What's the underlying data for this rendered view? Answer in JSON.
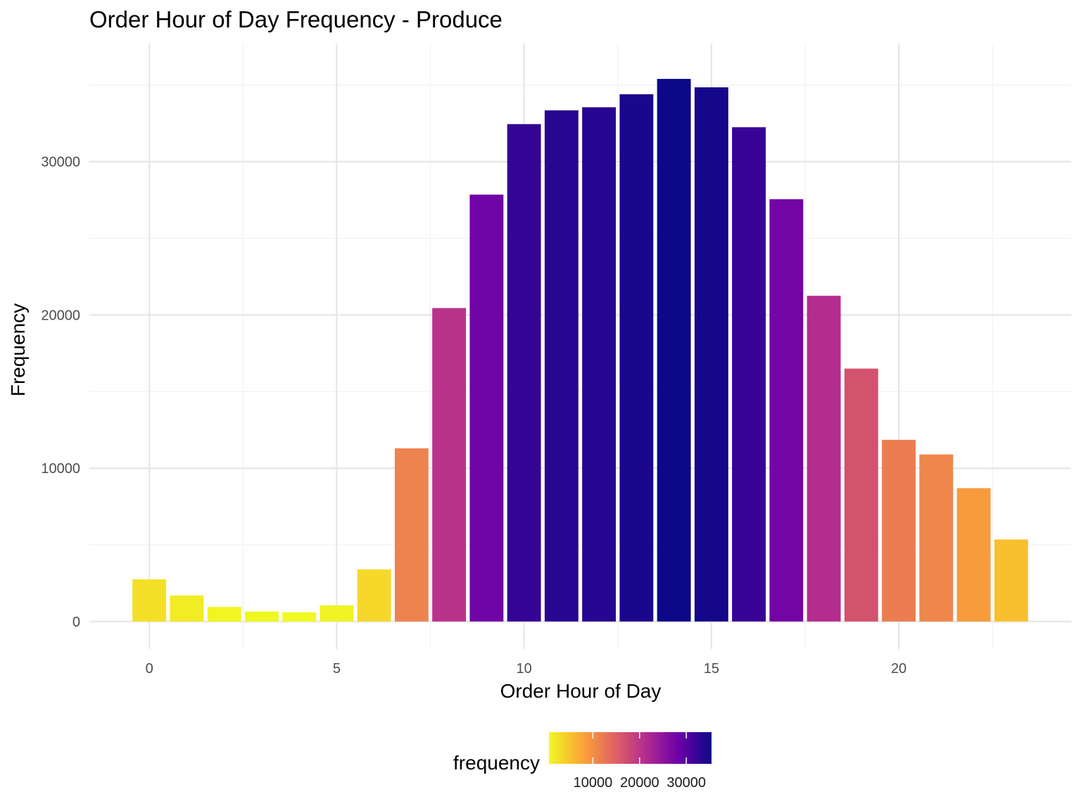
{
  "chart_data": {
    "type": "bar",
    "title": "Order Hour of Day Frequency - Produce",
    "xlabel": "Order Hour of Day",
    "ylabel": "Frequency",
    "x": [
      0,
      1,
      2,
      3,
      4,
      5,
      6,
      7,
      8,
      9,
      10,
      11,
      12,
      13,
      14,
      15,
      16,
      17,
      18,
      19,
      20,
      21,
      22,
      23
    ],
    "values": [
      2750,
      1700,
      950,
      650,
      600,
      1050,
      3400,
      11300,
      20450,
      27850,
      32450,
      33350,
      33550,
      34400,
      35400,
      34850,
      32250,
      27550,
      21250,
      16500,
      11850,
      10900,
      8700,
      5350
    ],
    "xlim": [
      -1.6,
      24.6
    ],
    "ylim": [
      -1800,
      37700
    ],
    "xticks": [
      0,
      5,
      10,
      15,
      20
    ],
    "xtick_labels": [
      "0",
      "5",
      "10",
      "15",
      "20"
    ],
    "yticks": [
      0,
      10000,
      20000,
      30000
    ],
    "ytick_labels": [
      "0",
      "10000",
      "20000",
      "30000"
    ],
    "grid": true,
    "legend": {
      "title": "frequency",
      "position": "bottom",
      "palette": "plasma (reversed)",
      "range": [
        600,
        35400
      ],
      "ticks": [
        10000,
        20000,
        30000
      ],
      "tick_labels": [
        "10000",
        "20000",
        "30000"
      ]
    }
  },
  "colors": {
    "background": "#ffffff",
    "grid_major": "#e6e6e6",
    "grid_minor": "#f2f2f2",
    "plasma_stops": [
      "#f0f921",
      "#fca636",
      "#e16462",
      "#b12a90",
      "#6a00a8",
      "#0d0887"
    ]
  }
}
